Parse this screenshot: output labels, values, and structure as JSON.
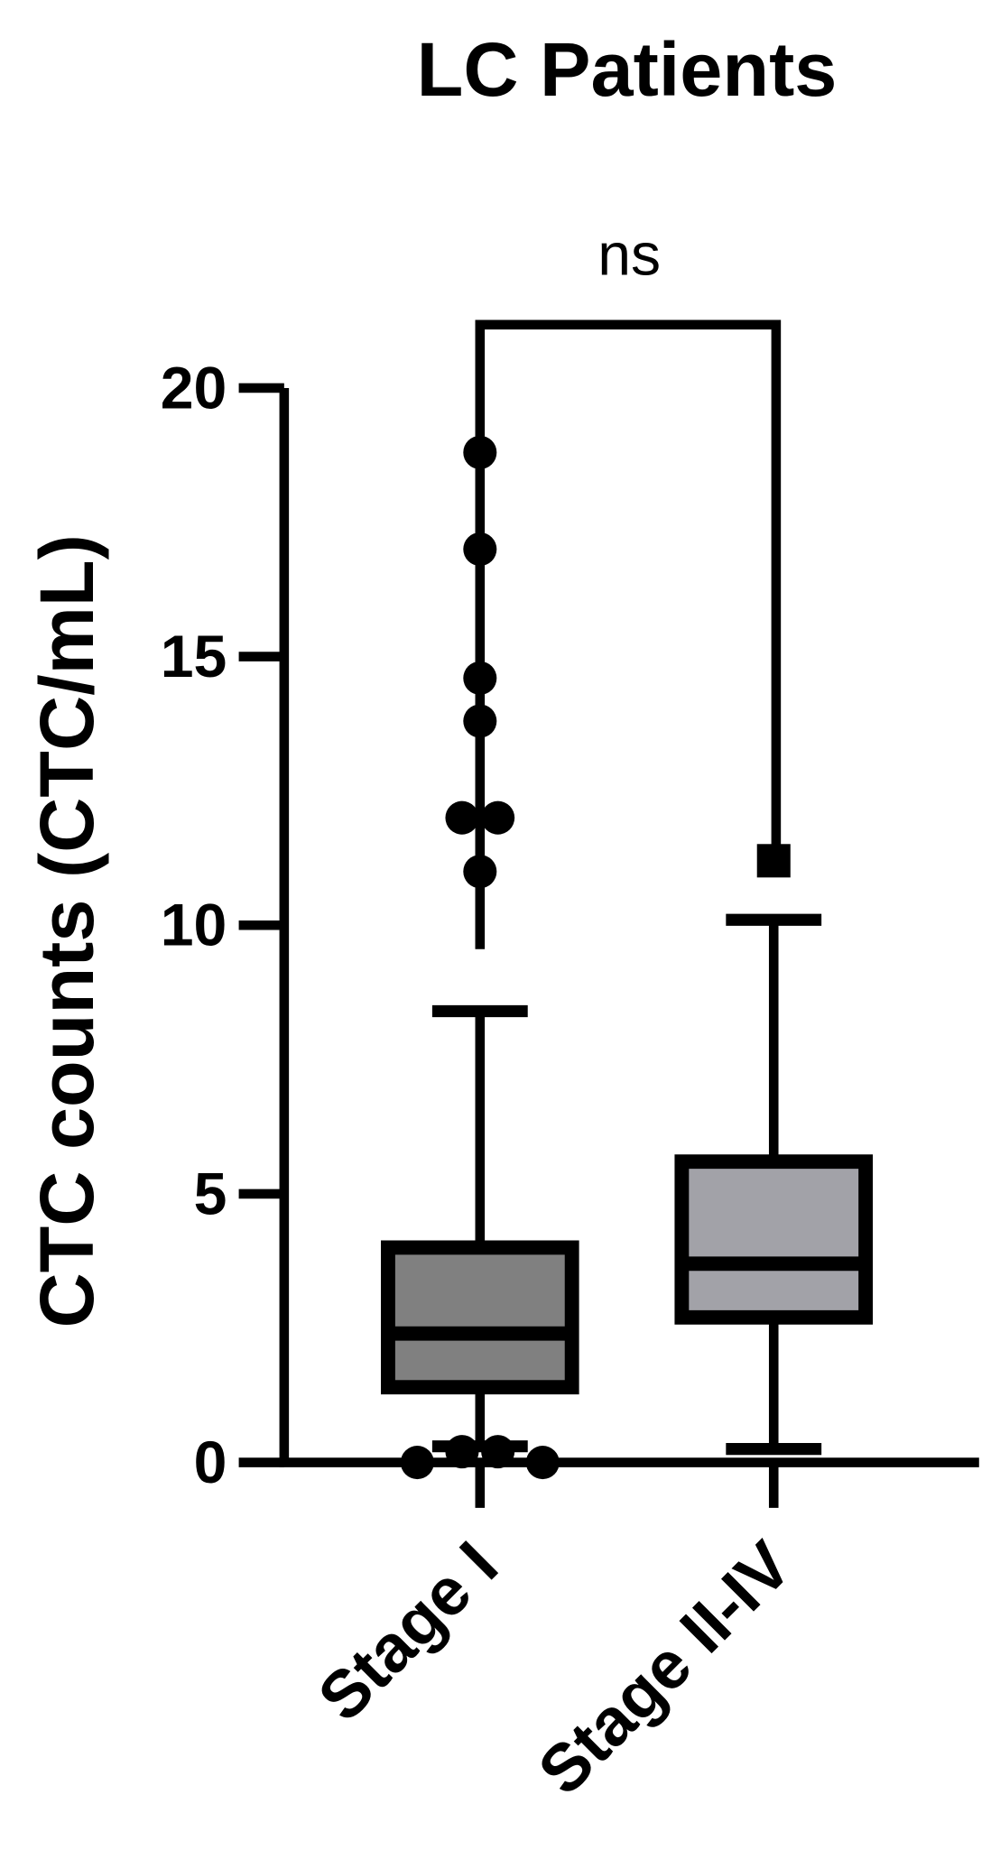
{
  "chart_data": {
    "type": "box",
    "title": "LC Patients",
    "y_label": "CTC counts (CTC/mL)",
    "annotation": "ns",
    "categories": [
      "Stage I",
      "Stage II-IV"
    ],
    "series": [
      {
        "name": "Stage I",
        "color": "#808080",
        "marker": "circle",
        "whisker_low": 0.3,
        "q1": 1.4,
        "median": 2.4,
        "q3": 4.0,
        "whisker_high": 8.4,
        "outliers": [
          18.8,
          17.0,
          14.6,
          13.8,
          12.0,
          12.0,
          11.0,
          0,
          0,
          0.2,
          0.2
        ]
      },
      {
        "name": "Stage II-IV",
        "color": "#a2a2a8",
        "marker": "square",
        "whisker_low": 0.25,
        "q1": 2.7,
        "median": 3.7,
        "q3": 5.6,
        "whisker_high": 10.1,
        "outliers": [
          11.2
        ]
      }
    ],
    "ylim": [
      0,
      20
    ],
    "yticks": [
      0,
      5,
      10,
      15,
      20
    ]
  }
}
